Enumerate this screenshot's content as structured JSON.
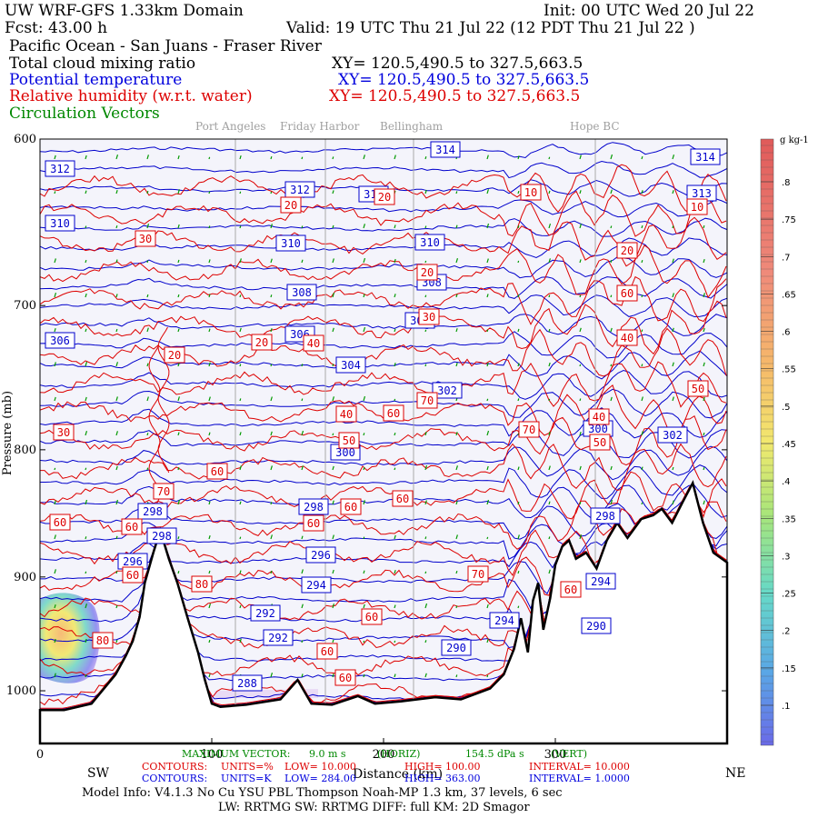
{
  "header": {
    "model": "UW WRF-GFS 1.33km Domain",
    "init": "Init: 00 UTC Wed 20 Jul 22",
    "fcst": "Fcst:   43.00 h",
    "valid": "Valid: 19 UTC Thu 21 Jul 22   (12 PDT Thu 21 Jul 22  )",
    "region": "Pacific Ocean - San Juans - Fraser River",
    "field1": "Total cloud mixing ratio",
    "xy1": "XY= 120.5,490.5 to 327.5,663.5",
    "field2": "Potential temperature",
    "xy2": "XY= 120.5,490.5 to 327.5,663.5",
    "field3": "Relative humidity (w.r.t. water)",
    "xy3": "XY= 120.5,490.5 to 327.5,663.5",
    "field4": "Circulation Vectors"
  },
  "places": [
    "Port Angeles",
    "Friday Harbor",
    "Bellingham",
    "Hope BC"
  ],
  "colors": {
    "theta": "#0000cc",
    "rh": "#dd0000",
    "terrain": "#000000",
    "vectors": "#009900",
    "bg": "#f4f4fb"
  },
  "chart_data": {
    "type": "cross-section",
    "x_label": "Distance (km)",
    "y_label": "Pressure (mb)",
    "xlim": [
      0,
      400
    ],
    "ylim_pressure": [
      1050,
      600
    ],
    "x_ticks": [
      0,
      100,
      200,
      300
    ],
    "y_ticks": [
      600,
      700,
      800,
      900,
      1000
    ],
    "left_end": "SW",
    "right_end": "NE",
    "theta_labels_K": [
      314,
      314,
      313,
      312,
      312,
      310,
      310,
      310,
      310,
      308,
      308,
      306,
      306,
      306,
      304,
      302,
      302,
      300,
      300,
      298,
      298,
      298,
      298,
      296,
      296,
      294,
      294,
      294,
      292,
      292,
      290,
      290,
      288
    ],
    "rh_labels_pct": [
      10,
      10,
      20,
      20,
      20,
      20,
      20,
      20,
      30,
      30,
      30,
      40,
      40,
      40,
      40,
      50,
      50,
      50,
      60,
      60,
      60,
      60,
      60,
      60,
      60,
      60,
      60,
      60,
      60,
      60,
      60,
      70,
      70,
      70,
      70,
      80,
      80
    ],
    "terrain_profile": [
      [
        0,
        1018
      ],
      [
        14,
        1018
      ],
      [
        30,
        1012
      ],
      [
        44,
        985
      ],
      [
        50,
        968
      ],
      [
        54,
        955
      ],
      [
        58,
        934
      ],
      [
        61,
        905
      ],
      [
        66,
        880
      ],
      [
        70,
        862
      ],
      [
        75,
        885
      ],
      [
        80,
        905
      ],
      [
        86,
        935
      ],
      [
        92,
        965
      ],
      [
        96,
        990
      ],
      [
        100,
        1012
      ],
      [
        105,
        1015
      ],
      [
        120,
        1013
      ],
      [
        140,
        1008
      ],
      [
        150,
        990
      ],
      [
        158,
        1012
      ],
      [
        170,
        1013
      ],
      [
        185,
        1005
      ],
      [
        195,
        1012
      ],
      [
        210,
        1010
      ],
      [
        230,
        1006
      ],
      [
        245,
        1008
      ],
      [
        262,
        998
      ],
      [
        270,
        985
      ],
      [
        276,
        962
      ],
      [
        280,
        935
      ],
      [
        284,
        965
      ],
      [
        287,
        920
      ],
      [
        290,
        905
      ],
      [
        293,
        945
      ],
      [
        297,
        918
      ],
      [
        300,
        890
      ],
      [
        304,
        875
      ],
      [
        308,
        870
      ],
      [
        312,
        885
      ],
      [
        318,
        880
      ],
      [
        324,
        893
      ],
      [
        330,
        870
      ],
      [
        336,
        856
      ],
      [
        342,
        868
      ],
      [
        350,
        853
      ],
      [
        357,
        850
      ],
      [
        362,
        845
      ],
      [
        368,
        856
      ],
      [
        374,
        840
      ],
      [
        380,
        825
      ],
      [
        386,
        856
      ],
      [
        392,
        880
      ],
      [
        400,
        888
      ]
    ],
    "colorbar": {
      "units": "g kg-1",
      "ticks": [
        ".1",
        ".15",
        ".2",
        ".25",
        ".3",
        ".35",
        ".4",
        ".45",
        ".5",
        ".55",
        ".6",
        ".65",
        ".7",
        ".75",
        ".8"
      ]
    },
    "max_vector": {
      "label": "MAXIMUM VECTOR:",
      "horiz": "9.0 m s",
      "horiz_suffix": "(HORIZ)",
      "vert": "154.5 dPa s",
      "vert_suffix": "(VERT)"
    },
    "contours_rh": {
      "label": "CONTOURS:",
      "units": "UNITS=%",
      "low": "LOW=   10.000",
      "high": "HIGH=   100.00",
      "interval": "INTERVAL=   10.000"
    },
    "contours_theta": {
      "label": "CONTOURS:",
      "units": "UNITS=K",
      "low": "LOW=   284.00",
      "high": "HIGH=   363.00",
      "interval": "INTERVAL=   1.0000"
    }
  },
  "footer": {
    "model_info": "Model Info: V4.1.3      No Cu    YSU PBL   Thompson      Noah-MP    1.3 km,   37 levels,     6 sec",
    "radiation": "LW: RRTMG SW: RRTMG    DIFF: full    KM: 2D Smagor"
  }
}
